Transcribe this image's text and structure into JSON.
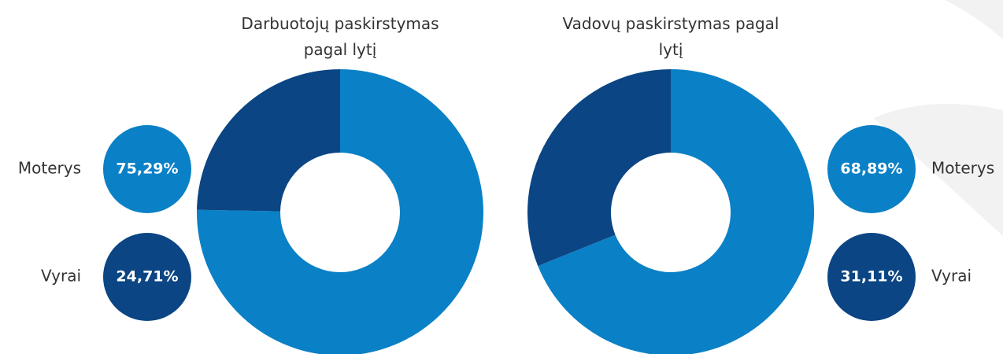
{
  "chart_data": [
    {
      "type": "donut",
      "title": "Darbuotojų paskirstymas pagal lytį",
      "categories": [
        "Moterys",
        "Vyrai"
      ],
      "values": [
        75.29,
        24.71
      ],
      "value_labels": [
        "75,29%",
        "24,71%"
      ],
      "colors": [
        "#0a80c6",
        "#0b4583"
      ],
      "legend": "left"
    },
    {
      "type": "donut",
      "title": "Vadovų paskirstymas pagal lytį",
      "categories": [
        "Moterys",
        "Vyrai"
      ],
      "values": [
        68.89,
        31.11
      ],
      "value_labels": [
        "68,89%",
        "31,11%"
      ],
      "colors": [
        "#0a80c6",
        "#0b4583"
      ],
      "legend": "right"
    }
  ]
}
